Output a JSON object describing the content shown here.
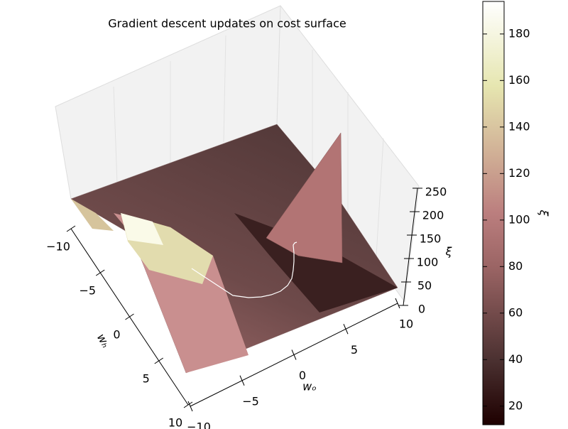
{
  "chart_data": {
    "type": "surface3d",
    "title": "Gradient descent updates on cost surface",
    "x_label": "wₒ",
    "y_label": "wₕ",
    "z_label": "ξ",
    "colorbar_label": "ξ",
    "xlim": [
      -10,
      10
    ],
    "xticks": [
      {
        "value": -10,
        "label": "−10"
      },
      {
        "value": -5,
        "label": "−5"
      },
      0,
      5,
      10
    ],
    "ylim": [
      -10,
      10
    ],
    "yticks": [
      {
        "value": -10,
        "label": "−10"
      },
      {
        "value": -5,
        "label": "−5"
      },
      0,
      5,
      10
    ],
    "zlim": [
      0,
      250
    ],
    "zticks": [
      0,
      50,
      100,
      150,
      200,
      250
    ],
    "clim": [
      12,
      194
    ],
    "cticks": [
      20,
      40,
      60,
      80,
      100,
      120,
      140,
      160,
      180
    ]
  }
}
